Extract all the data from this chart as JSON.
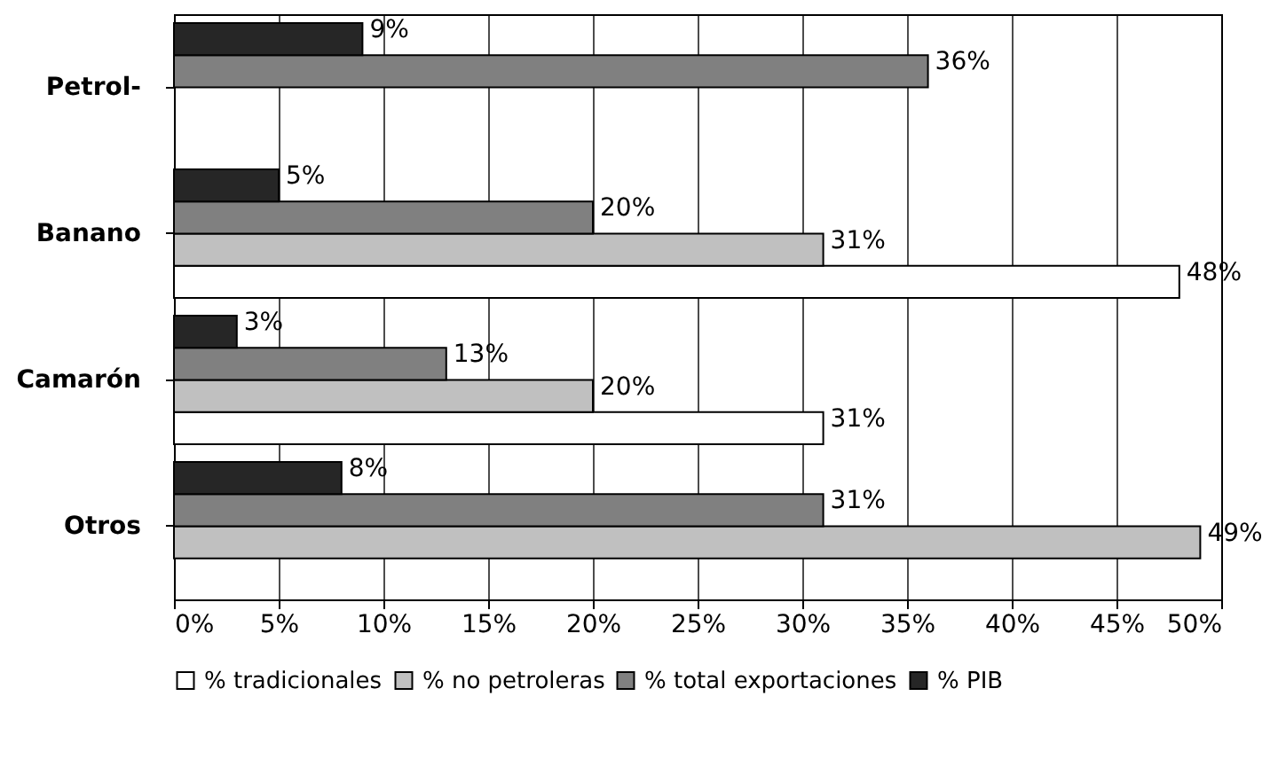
{
  "chart_data": {
    "type": "bar",
    "orientation": "horizontal",
    "categories": [
      "Petrol-",
      "Banano",
      "Camarón",
      "Otros"
    ],
    "series": [
      {
        "name": "% tradicionales",
        "color": "#ffffff",
        "values": [
          null,
          48,
          31,
          null
        ],
        "value_labels": [
          null,
          "48%",
          "31%",
          null
        ]
      },
      {
        "name": "% no petroleras",
        "color": "#c0c0c0",
        "values": [
          null,
          31,
          20,
          49
        ],
        "value_labels": [
          null,
          "31%",
          "20%",
          "49%"
        ]
      },
      {
        "name": "% total exportaciones",
        "color": "#808080",
        "values": [
          36,
          20,
          13,
          31
        ],
        "value_labels": [
          "36%",
          "20%",
          "13%",
          "31%"
        ]
      },
      {
        "name": "% PIB",
        "color": "#262626",
        "values": [
          9,
          5,
          3,
          8
        ],
        "value_labels": [
          "9%",
          "5%",
          "3%",
          "8%"
        ]
      }
    ],
    "xlim": [
      0,
      50
    ],
    "xticks": [
      {
        "value": 0,
        "label": "0%"
      },
      {
        "value": 5,
        "label": "5%"
      },
      {
        "value": 10,
        "label": "10%"
      },
      {
        "value": 15,
        "label": "15%"
      },
      {
        "value": 20,
        "label": "20%"
      },
      {
        "value": 25,
        "label": "25%"
      },
      {
        "value": 30,
        "label": "30%"
      },
      {
        "value": 35,
        "label": "35%"
      },
      {
        "value": 40,
        "label": "40%"
      },
      {
        "value": 45,
        "label": "45%"
      },
      {
        "value": 50,
        "label": "50%"
      }
    ],
    "grid": "x",
    "legend": "bottom"
  }
}
